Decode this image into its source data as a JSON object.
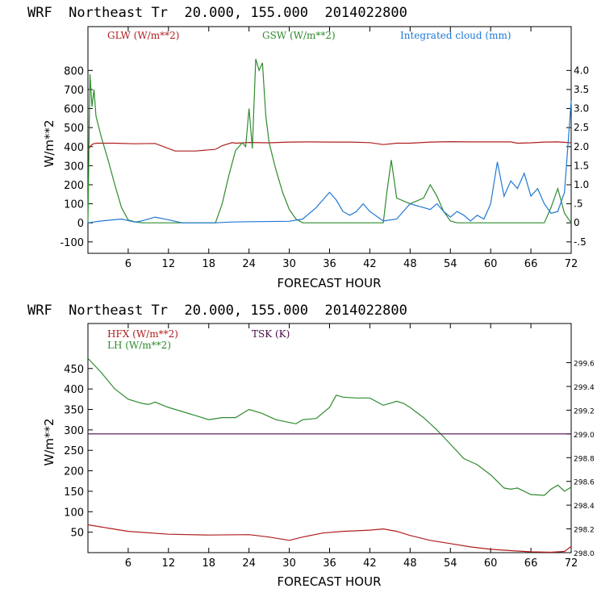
{
  "chart_data": [
    {
      "type": "line",
      "title": "WRF  Northeast Tr  20.000, 155.000  2014022800",
      "xlabel": "FORECAST HOUR",
      "ylabel": "W/m**2",
      "xlim": [
        0,
        72
      ],
      "ylim": [
        -160,
        1030
      ],
      "y2lim": [
        -0.8,
        5.15
      ],
      "xticks": [
        "6",
        "12",
        "18",
        "24",
        "30",
        "36",
        "42",
        "48",
        "54",
        "60",
        "66",
        "72"
      ],
      "yticks": [
        "800",
        "700",
        "600",
        "500",
        "400",
        "300",
        "200",
        "100",
        "0",
        "-100"
      ],
      "y2ticks": [
        "4.0",
        "3.5",
        "3.0",
        "2.5",
        "2.0",
        "1.5",
        "1.0",
        ".5",
        "0",
        "-.5"
      ],
      "colors": {
        "GLW": "#b01e1e",
        "GSW": "#2e8b2e",
        "CLOUD": "#1f78d4"
      },
      "series": [
        {
          "name": "GLW (W/m**2)",
          "axis": "left",
          "x": [
            0,
            0.4,
            0.8,
            1.3,
            4,
            7,
            10,
            13,
            16,
            19,
            20,
            21.5,
            22,
            24,
            27,
            30,
            33,
            36,
            39,
            42,
            44,
            46,
            48,
            51,
            54,
            57,
            60,
            63,
            64,
            66,
            68,
            70,
            72
          ],
          "values": [
            380,
            405,
            415,
            418,
            418,
            415,
            417,
            377,
            377,
            386,
            405,
            421,
            418,
            422,
            420,
            424,
            425,
            424,
            424,
            421,
            411,
            418,
            418,
            424,
            426,
            425,
            425,
            425,
            418,
            420,
            424,
            425,
            420
          ]
        },
        {
          "name": "GSW (W/m**2)",
          "axis": "left",
          "x": [
            0,
            0.3,
            0.6,
            0.9,
            1.2,
            2,
            3,
            4,
            5,
            6,
            7,
            8,
            19,
            20,
            21,
            22,
            23,
            23.5,
            24,
            24.5,
            25,
            25.5,
            26,
            26.5,
            27,
            28,
            29,
            30,
            31,
            32,
            44,
            44.5,
            45.2,
            46,
            48,
            50,
            51,
            52,
            53,
            54,
            55,
            68,
            69,
            70,
            71,
            72
          ],
          "values": [
            0,
            780,
            610,
            700,
            560,
            450,
            330,
            200,
            80,
            15,
            5,
            0,
            0,
            100,
            250,
            380,
            420,
            400,
            600,
            390,
            860,
            800,
            840,
            560,
            420,
            280,
            160,
            70,
            20,
            0,
            0,
            150,
            330,
            130,
            100,
            130,
            200,
            140,
            60,
            10,
            0,
            0,
            80,
            180,
            50,
            0
          ]
        },
        {
          "name": "Integrated cloud (mm)",
          "axis": "right",
          "x": [
            0,
            2,
            5,
            7,
            8,
            10,
            12,
            14,
            19,
            21,
            24,
            30,
            32,
            34,
            35,
            36,
            37,
            38,
            39,
            40,
            41,
            42,
            44,
            46,
            48,
            50,
            51,
            52,
            53,
            54,
            55,
            56,
            57,
            58,
            59,
            60,
            61,
            62,
            63,
            64,
            65,
            66,
            67,
            68,
            69,
            70,
            71,
            72
          ],
          "values": [
            0,
            0.05,
            0.1,
            0.02,
            0.05,
            0.15,
            0.08,
            0,
            0,
            0.02,
            0.03,
            0.04,
            0.1,
            0.4,
            0.6,
            0.8,
            0.6,
            0.3,
            0.2,
            0.3,
            0.5,
            0.3,
            0.05,
            0.1,
            0.5,
            0.4,
            0.35,
            0.5,
            0.3,
            0.15,
            0.3,
            0.2,
            0.05,
            0.2,
            0.1,
            0.5,
            1.6,
            0.7,
            1.1,
            0.9,
            1.3,
            0.7,
            0.9,
            0.5,
            0.25,
            0.3,
            0.8,
            3.2
          ]
        }
      ]
    },
    {
      "type": "line",
      "title": "WRF  Northeast Tr  20.000, 155.000  2014022800",
      "xlabel": "FORECAST HOUR",
      "ylabel": "W/m**2",
      "xlim": [
        0,
        72
      ],
      "ylim": [
        0,
        560
      ],
      "y2lim": [
        298.0,
        299.93
      ],
      "xticks": [
        "6",
        "12",
        "18",
        "24",
        "30",
        "36",
        "42",
        "48",
        "54",
        "60",
        "66",
        "72"
      ],
      "yticks": [
        "450",
        "400",
        "350",
        "300",
        "250",
        "200",
        "150",
        "100",
        "50"
      ],
      "y2ticks": [
        "299.6",
        "299.4",
        "299.2",
        "299.0",
        "298.8",
        "298.6",
        "298.4",
        "298.2",
        "298.0"
      ],
      "colors": {
        "HFX": "#b01e1e",
        "LH": "#2e8b2e",
        "TSK": "#4a0a4a"
      },
      "series": [
        {
          "name": "HFX (W/m**2)",
          "axis": "left",
          "x": [
            0,
            3,
            6,
            12,
            18,
            24,
            27,
            30,
            32,
            35,
            38,
            42,
            44,
            46,
            48,
            51,
            54,
            57,
            60,
            63,
            66,
            69,
            71,
            72
          ],
          "values": [
            68,
            60,
            52,
            45,
            43,
            44,
            38,
            30,
            38,
            48,
            52,
            55,
            58,
            52,
            42,
            30,
            22,
            14,
            8,
            5,
            2,
            1,
            3,
            15
          ]
        },
        {
          "name": "LH (W/m**2)",
          "axis": "left",
          "x": [
            0,
            2,
            4,
            6,
            8,
            9,
            10,
            12,
            14,
            16,
            18,
            20,
            22,
            24,
            26,
            28,
            30,
            31,
            32,
            34,
            36,
            37,
            38,
            40,
            42,
            44,
            46,
            47,
            48,
            50,
            52,
            54,
            56,
            58,
            60,
            62,
            63,
            64,
            66,
            68,
            69,
            70,
            71,
            72
          ],
          "values": [
            475,
            440,
            400,
            375,
            365,
            362,
            368,
            355,
            345,
            335,
            325,
            330,
            330,
            350,
            340,
            325,
            318,
            315,
            325,
            328,
            355,
            385,
            380,
            378,
            378,
            360,
            370,
            365,
            355,
            330,
            300,
            265,
            230,
            215,
            190,
            158,
            155,
            158,
            142,
            140,
            155,
            165,
            150,
            160
          ]
        },
        {
          "name": "TSK (K)",
          "axis": "right",
          "x": [
            0,
            72
          ],
          "values": [
            299.0,
            299.0
          ]
        }
      ]
    }
  ]
}
